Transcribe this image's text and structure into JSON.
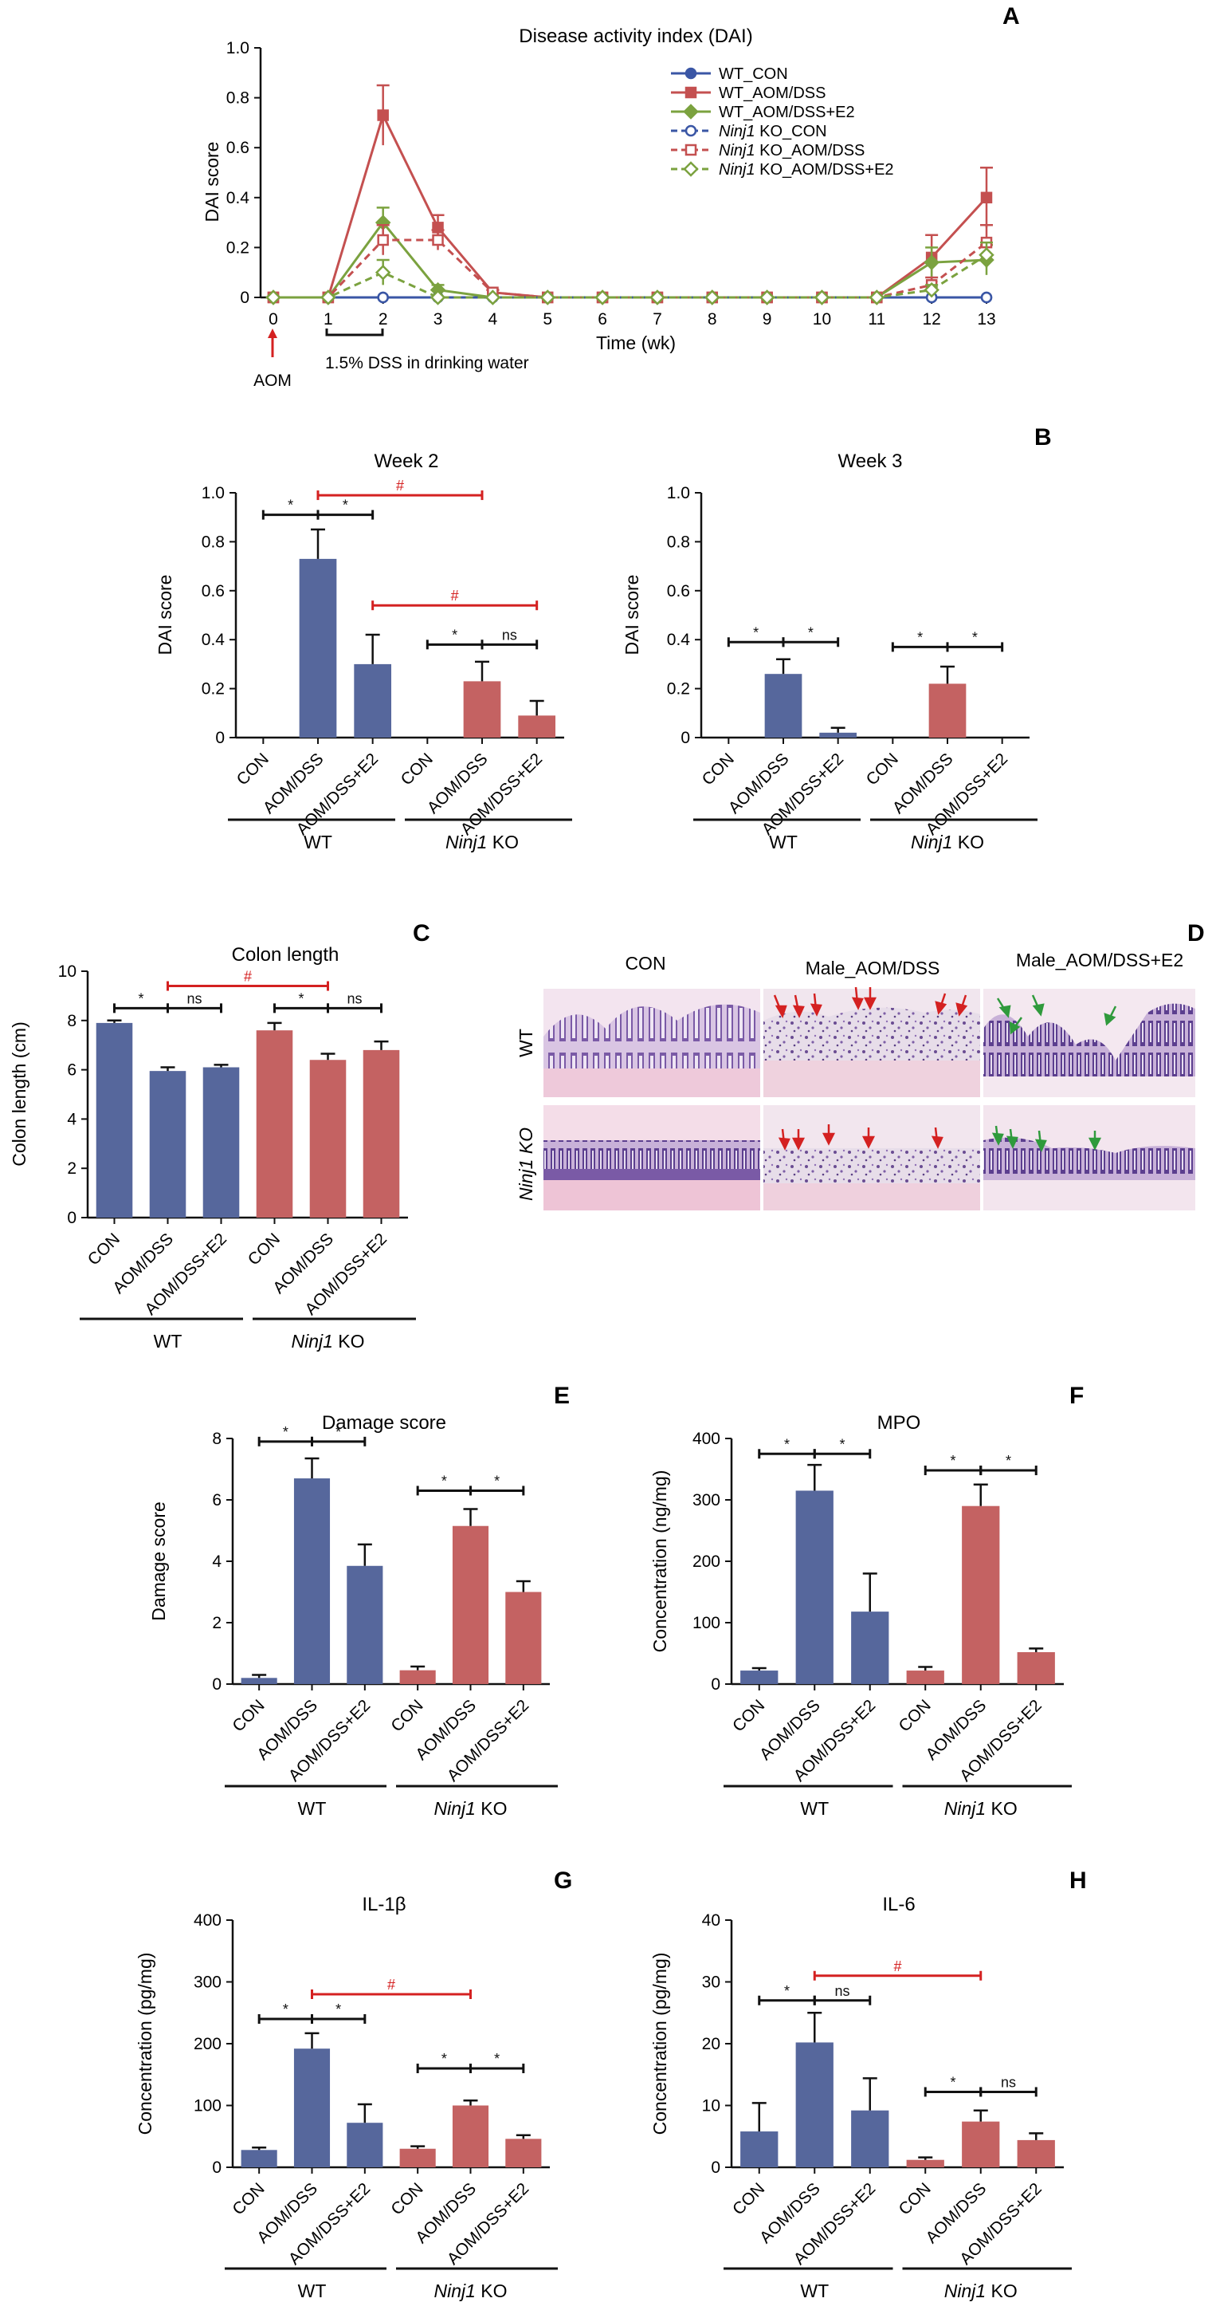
{
  "figure": {
    "panel_A": {
      "letter": "A",
      "title": "Disease activity index (DAI)",
      "ylabel": "DAI score",
      "xlabel": "Time (wk)",
      "aom_label": "AOM",
      "dss_label": "1.5% DSS in drinking water"
    },
    "panel_B": {
      "letter": "B"
    },
    "panel_C": {
      "letter": "C"
    },
    "panel_D": {
      "letter": "D",
      "col_labels": [
        "CON",
        "Male_AOM/DSS",
        "Male_AOM/DSS+E2"
      ],
      "row_labels": [
        "WT",
        "Ninj1 KO"
      ]
    },
    "panel_E": {
      "letter": "E"
    },
    "panel_F": {
      "letter": "F"
    },
    "panel_G": {
      "letter": "G"
    },
    "panel_H": {
      "letter": "H"
    },
    "group_labels": {
      "wt": "WT",
      "ko_italic": "Ninj1",
      "ko_rest": " KO"
    },
    "colors": {
      "blue": "#56679c",
      "red": "#c46262",
      "green": "#7ba23f",
      "sig_red": "#d42121",
      "black": "#111111",
      "arrow_red": "#d42121",
      "arrow_green": "#2f9a3c"
    }
  },
  "chart_data": [
    {
      "id": "A",
      "type": "line",
      "title": "Disease activity index (DAI)",
      "xlabel": "Time (wk)",
      "ylabel": "DAI score",
      "x": [
        0,
        1,
        2,
        3,
        4,
        5,
        6,
        7,
        8,
        9,
        10,
        11,
        12,
        13
      ],
      "ylim": [
        0,
        1.0
      ],
      "yticks": [
        "0",
        "0.2",
        "0.4",
        "0.6",
        "0.8",
        "1.0"
      ],
      "legend_position": "top-right",
      "series": [
        {
          "name": "WT_CON",
          "values": [
            0,
            0,
            0,
            0,
            0,
            0,
            0,
            0,
            0,
            0,
            0,
            0,
            0,
            0
          ],
          "err": [
            0,
            0,
            0,
            0,
            0,
            0,
            0,
            0,
            0,
            0,
            0,
            0,
            0,
            0
          ],
          "color": "#3a56a5",
          "style": "solid",
          "marker": "circle",
          "filled": true
        },
        {
          "name": "WT_AOM/DSS",
          "values": [
            0,
            0,
            0.73,
            0.28,
            0.02,
            0,
            0,
            0,
            0,
            0,
            0,
            0,
            0.16,
            0.4
          ],
          "err": [
            0,
            0,
            0.12,
            0.05,
            0.01,
            0,
            0,
            0,
            0,
            0,
            0,
            0,
            0.09,
            0.12
          ],
          "color": "#c45050",
          "style": "solid",
          "marker": "square",
          "filled": true
        },
        {
          "name": "WT_AOM/DSS+E2",
          "values": [
            0,
            0,
            0.3,
            0.03,
            0,
            0,
            0,
            0,
            0,
            0,
            0,
            0,
            0.14,
            0.15
          ],
          "err": [
            0,
            0,
            0.06,
            0.02,
            0,
            0,
            0,
            0,
            0,
            0,
            0,
            0,
            0.06,
            0.06
          ],
          "color": "#7ba23f",
          "style": "solid",
          "marker": "diamond",
          "filled": true
        },
        {
          "name": "Ninj1 KO_CON",
          "values": [
            0,
            0,
            0,
            0,
            0,
            0,
            0,
            0,
            0,
            0,
            0,
            0,
            0,
            0
          ],
          "err": [
            0,
            0,
            0,
            0,
            0,
            0,
            0,
            0,
            0,
            0,
            0,
            0,
            0,
            0
          ],
          "color": "#3a56a5",
          "style": "dashed",
          "marker": "circle",
          "filled": false
        },
        {
          "name": "Ninj1 KO_AOM/DSS",
          "values": [
            0,
            0,
            0.23,
            0.23,
            0.02,
            0,
            0,
            0,
            0,
            0,
            0,
            0,
            0.05,
            0.22
          ],
          "err": [
            0,
            0,
            0.06,
            0.04,
            0.01,
            0,
            0,
            0,
            0,
            0,
            0,
            0,
            0.03,
            0.07
          ],
          "color": "#c45050",
          "style": "dashed",
          "marker": "square",
          "filled": false
        },
        {
          "name": "Ninj1 KO_AOM/DSS+E2",
          "values": [
            0,
            0,
            0.1,
            0,
            0,
            0,
            0,
            0,
            0,
            0,
            0,
            0,
            0.03,
            0.17
          ],
          "err": [
            0,
            0,
            0.05,
            0,
            0,
            0,
            0,
            0,
            0,
            0,
            0,
            0,
            0.02,
            0.05
          ],
          "color": "#7ba23f",
          "style": "dashed",
          "marker": "diamond",
          "filled": false
        }
      ]
    },
    {
      "id": "B1",
      "type": "bar",
      "title": "Week 2",
      "ylabel": "DAI score",
      "ylim": [
        0,
        1.0
      ],
      "yticks": [
        "0",
        "0.2",
        "0.4",
        "0.6",
        "0.8",
        "1.0"
      ],
      "categories": [
        "CON",
        "AOM/DSS",
        "AOM/DSS+E2",
        "CON",
        "AOM/DSS",
        "AOM/DSS+E2"
      ],
      "values": [
        0,
        0.73,
        0.3,
        0,
        0.23,
        0.09
      ],
      "err": [
        0,
        0.12,
        0.12,
        0,
        0.08,
        0.06
      ],
      "annotations": [
        {
          "label": "*",
          "from": 0,
          "to": 1,
          "y": 0.91,
          "color": "black"
        },
        {
          "label": "*",
          "from": 1,
          "to": 2,
          "y": 0.91,
          "color": "black"
        },
        {
          "label": "#",
          "from": 1,
          "to": 4,
          "y": 0.99,
          "color": "red"
        },
        {
          "label": "#",
          "from": 2,
          "to": 5,
          "y": 0.54,
          "color": "red"
        },
        {
          "label": "*",
          "from": 3,
          "to": 4,
          "y": 0.38,
          "color": "black"
        },
        {
          "label": "ns",
          "from": 4,
          "to": 5,
          "y": 0.38,
          "color": "black"
        }
      ]
    },
    {
      "id": "B2",
      "type": "bar",
      "title": "Week 3",
      "ylabel": "DAI score",
      "ylim": [
        0,
        1.0
      ],
      "yticks": [
        "0",
        "0.2",
        "0.4",
        "0.6",
        "0.8",
        "1.0"
      ],
      "categories": [
        "CON",
        "AOM/DSS",
        "AOM/DSS+E2",
        "CON",
        "AOM/DSS",
        "AOM/DSS+E2"
      ],
      "values": [
        0,
        0.26,
        0.02,
        0,
        0.22,
        0
      ],
      "err": [
        0,
        0.06,
        0.02,
        0,
        0.07,
        0
      ],
      "annotations": [
        {
          "label": "*",
          "from": 0,
          "to": 1,
          "y": 0.39,
          "color": "black"
        },
        {
          "label": "*",
          "from": 1,
          "to": 2,
          "y": 0.39,
          "color": "black"
        },
        {
          "label": "*",
          "from": 3,
          "to": 4,
          "y": 0.37,
          "color": "black"
        },
        {
          "label": "*",
          "from": 4,
          "to": 5,
          "y": 0.37,
          "color": "black"
        }
      ]
    },
    {
      "id": "C",
      "type": "bar",
      "title": "Colon length",
      "ylabel": "Colon length (cm)",
      "ylim": [
        0,
        10
      ],
      "yticks": [
        "0",
        "2",
        "4",
        "6",
        "8",
        "10"
      ],
      "categories": [
        "CON",
        "AOM/DSS",
        "AOM/DSS+E2",
        "CON",
        "AOM/DSS",
        "AOM/DSS+E2"
      ],
      "values": [
        7.9,
        5.95,
        6.1,
        7.6,
        6.4,
        6.8
      ],
      "err": [
        0.1,
        0.15,
        0.1,
        0.3,
        0.25,
        0.35
      ],
      "annotations": [
        {
          "label": "*",
          "from": 0,
          "to": 1,
          "y": 8.5,
          "color": "black"
        },
        {
          "label": "ns",
          "from": 1,
          "to": 2,
          "y": 8.5,
          "color": "black"
        },
        {
          "label": "#",
          "from": 1,
          "to": 4,
          "y": 9.4,
          "color": "red"
        },
        {
          "label": "*",
          "from": 3,
          "to": 4,
          "y": 8.5,
          "color": "black"
        },
        {
          "label": "ns",
          "from": 4,
          "to": 5,
          "y": 8.5,
          "color": "black"
        }
      ]
    },
    {
      "id": "E",
      "type": "bar",
      "title": "Damage score",
      "ylabel": "Damage score",
      "ylim": [
        0,
        8
      ],
      "yticks": [
        "0",
        "2",
        "4",
        "6",
        "8"
      ],
      "categories": [
        "CON",
        "AOM/DSS",
        "AOM/DSS+E2",
        "CON",
        "AOM/DSS",
        "AOM/DSS+E2"
      ],
      "values": [
        0.2,
        6.7,
        3.85,
        0.45,
        5.15,
        3.0
      ],
      "err": [
        0.1,
        0.65,
        0.7,
        0.12,
        0.55,
        0.35
      ],
      "annotations": [
        {
          "label": "*",
          "from": 0,
          "to": 1,
          "y": 7.9,
          "color": "black"
        },
        {
          "label": "*",
          "from": 1,
          "to": 2,
          "y": 7.9,
          "color": "black"
        },
        {
          "label": "*",
          "from": 3,
          "to": 4,
          "y": 6.3,
          "color": "black"
        },
        {
          "label": "*",
          "from": 4,
          "to": 5,
          "y": 6.3,
          "color": "black"
        }
      ]
    },
    {
      "id": "F",
      "type": "bar",
      "title": "MPO",
      "ylabel": "Concentration (ng/mg)",
      "ylim": [
        0,
        400
      ],
      "yticks": [
        "0",
        "100",
        "200",
        "300",
        "400"
      ],
      "categories": [
        "CON",
        "AOM/DSS",
        "AOM/DSS+E2",
        "CON",
        "AOM/DSS",
        "AOM/DSS+E2"
      ],
      "values": [
        22,
        315,
        118,
        22,
        290,
        52
      ],
      "err": [
        4,
        42,
        62,
        6,
        35,
        6
      ],
      "annotations": [
        {
          "label": "*",
          "from": 0,
          "to": 1,
          "y": 375,
          "color": "black"
        },
        {
          "label": "*",
          "from": 1,
          "to": 2,
          "y": 375,
          "color": "black"
        },
        {
          "label": "*",
          "from": 3,
          "to": 4,
          "y": 348,
          "color": "black"
        },
        {
          "label": "*",
          "from": 4,
          "to": 5,
          "y": 348,
          "color": "black"
        }
      ]
    },
    {
      "id": "G",
      "type": "bar",
      "title": "IL-1β",
      "ylabel": "Concentration (pg/mg)",
      "ylim": [
        0,
        400
      ],
      "yticks": [
        "0",
        "100",
        "200",
        "300",
        "400"
      ],
      "categories": [
        "CON",
        "AOM/DSS",
        "AOM/DSS+E2",
        "CON",
        "AOM/DSS",
        "AOM/DSS+E2"
      ],
      "values": [
        28,
        192,
        72,
        30,
        100,
        46
      ],
      "err": [
        4,
        25,
        30,
        4,
        8,
        6
      ],
      "annotations": [
        {
          "label": "*",
          "from": 0,
          "to": 1,
          "y": 240,
          "color": "black"
        },
        {
          "label": "*",
          "from": 1,
          "to": 2,
          "y": 240,
          "color": "black"
        },
        {
          "label": "#",
          "from": 1,
          "to": 4,
          "y": 280,
          "color": "red"
        },
        {
          "label": "*",
          "from": 3,
          "to": 4,
          "y": 160,
          "color": "black"
        },
        {
          "label": "*",
          "from": 4,
          "to": 5,
          "y": 160,
          "color": "black"
        }
      ]
    },
    {
      "id": "H",
      "type": "bar",
      "title": "IL-6",
      "ylabel": "Concentration (pg/mg)",
      "ylim": [
        0,
        40
      ],
      "yticks": [
        "0",
        "10",
        "20",
        "30",
        "40"
      ],
      "categories": [
        "CON",
        "AOM/DSS",
        "AOM/DSS+E2",
        "CON",
        "AOM/DSS",
        "AOM/DSS+E2"
      ],
      "values": [
        5.8,
        20.2,
        9.2,
        1.2,
        7.4,
        4.4
      ],
      "err": [
        4.6,
        4.8,
        5.2,
        0.4,
        1.8,
        1.1
      ],
      "annotations": [
        {
          "label": "*",
          "from": 0,
          "to": 1,
          "y": 27,
          "color": "black"
        },
        {
          "label": "ns",
          "from": 1,
          "to": 2,
          "y": 27,
          "color": "black"
        },
        {
          "label": "#",
          "from": 1,
          "to": 4,
          "y": 31,
          "color": "red"
        },
        {
          "label": "*",
          "from": 3,
          "to": 4,
          "y": 12.2,
          "color": "black"
        },
        {
          "label": "ns",
          "from": 4,
          "to": 5,
          "y": 12.2,
          "color": "black"
        }
      ]
    }
  ]
}
